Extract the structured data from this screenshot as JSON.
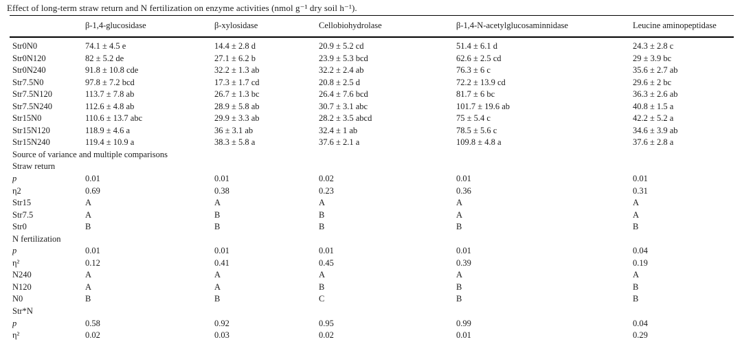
{
  "caption": "Effect of long-term straw return and N fertilization on enzyme activities (nmol g⁻¹ dry soil h⁻¹).",
  "table": {
    "columns": [
      "β-1,4-glucosidase",
      "β-xylosidase",
      "Cellobiohydrolase",
      "β-1,4-N-acetylglucosaminnidase",
      "Leucine aminopeptidase"
    ],
    "rows": [
      {
        "label": "Str0N0",
        "cells": [
          "74.1 ± 4.5 e",
          "14.4 ± 2.8 d",
          "20.9 ± 5.2 cd",
          "51.4 ± 6.1 d",
          "24.3 ± 2.8 c"
        ]
      },
      {
        "label": "Str0N120",
        "cells": [
          "82 ± 5.2 de",
          "27.1 ± 6.2 b",
          "23.9 ± 5.3 bcd",
          "62.6 ± 2.5 cd",
          "29 ± 3.9 bc"
        ]
      },
      {
        "label": "Str0N240",
        "cells": [
          "91.8 ± 10.8 cde",
          "32.2 ± 1.3 ab",
          "32.2 ± 2.4 ab",
          "76.3 ± 6 c",
          "35.6 ± 2.7 ab"
        ]
      },
      {
        "label": "Str7.5N0",
        "cells": [
          "97.8 ± 7.2 bcd",
          "17.3 ± 1.7 cd",
          "20.8 ± 2.5 d",
          "72.2 ± 13.9 cd",
          "29.6 ± 2 bc"
        ]
      },
      {
        "label": "Str7.5N120",
        "cells": [
          "113.7 ± 7.8 ab",
          "26.7 ± 1.3 bc",
          "26.4 ± 7.6 bcd",
          "81.7 ± 6 bc",
          "36.3 ± 2.6 ab"
        ]
      },
      {
        "label": "Str7.5N240",
        "cells": [
          "112.6 ± 4.8 ab",
          "28.9 ± 5.8 ab",
          "30.7 ± 3.1 abc",
          "101.7 ± 19.6 ab",
          "40.8 ± 1.5 a"
        ]
      },
      {
        "label": "Str15N0",
        "cells": [
          "110.6 ± 13.7 abc",
          "29.9 ± 3.3 ab",
          "28.2 ± 3.5 abcd",
          "75 ± 5.4 c",
          "42.2 ± 5.2 a"
        ]
      },
      {
        "label": "Str15N120",
        "cells": [
          "118.9 ± 4.6 a",
          "36 ± 3.1 ab",
          "32.4 ± 1 ab",
          "78.5 ± 5.6 c",
          "34.6 ± 3.9 ab"
        ]
      },
      {
        "label": "Str15N240",
        "cells": [
          "119.4 ± 10.9 a",
          "38.3 ± 5.8 a",
          "37.6 ± 2.1 a",
          "109.8 ± 4.8 a",
          "37.6 ± 2.8 a"
        ]
      },
      {
        "label": "Source of variance and multiple comparisons",
        "cells": [],
        "section": true
      },
      {
        "label": "Straw return",
        "cells": [],
        "section": true
      },
      {
        "label": "p",
        "italic": true,
        "cells": [
          "0.01",
          "0.01",
          "0.02",
          "0.01",
          "0.01"
        ]
      },
      {
        "label": "η2",
        "cells": [
          "0.69",
          "0.38",
          "0.23",
          "0.36",
          "0.31"
        ]
      },
      {
        "label": "Str15",
        "cells": [
          "A",
          "A",
          "A",
          "A",
          "A"
        ]
      },
      {
        "label": "Str7.5",
        "cells": [
          "A",
          "B",
          "B",
          "A",
          "A"
        ]
      },
      {
        "label": "Str0",
        "cells": [
          "B",
          "B",
          "B",
          "B",
          "B"
        ]
      },
      {
        "label": "N fertilization",
        "cells": [],
        "section": true
      },
      {
        "label": "p",
        "italic": true,
        "cells": [
          "0.01",
          "0.01",
          "0.01",
          "0.01",
          "0.04"
        ]
      },
      {
        "label": "η²",
        "cells": [
          "0.12",
          "0.41",
          "0.45",
          "0.39",
          "0.19"
        ]
      },
      {
        "label": "N240",
        "cells": [
          "A",
          "A",
          "A",
          "A",
          "A"
        ]
      },
      {
        "label": "N120",
        "cells": [
          "A",
          "A",
          "B",
          "B",
          "B"
        ]
      },
      {
        "label": "N0",
        "cells": [
          "B",
          "B",
          "C",
          "B",
          "B"
        ]
      },
      {
        "label": "Str*N",
        "cells": [],
        "section": true
      },
      {
        "label": "p",
        "italic": true,
        "cells": [
          "0.58",
          "0.92",
          "0.95",
          "0.99",
          "0.04"
        ]
      },
      {
        "label": "η²",
        "cells": [
          "0.02",
          "0.03",
          "0.02",
          "0.01",
          "0.29"
        ]
      }
    ]
  }
}
